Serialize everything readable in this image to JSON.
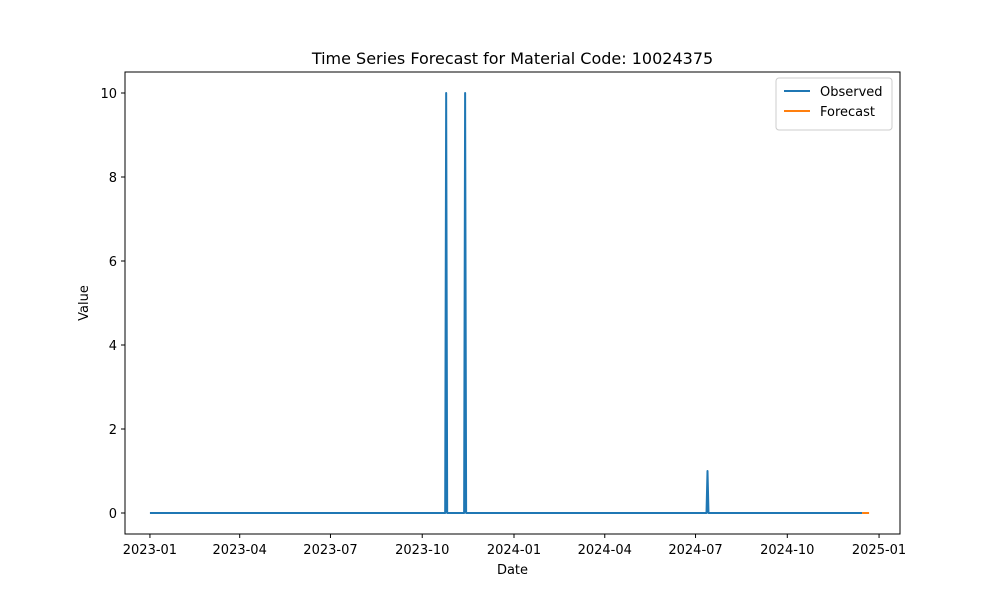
{
  "chart_data": {
    "type": "line",
    "title": "Time Series Forecast for Material Code: 10024375",
    "xlabel": "Date",
    "ylabel": "Value",
    "xlim": [
      "2022-12-07",
      "2025-01-22"
    ],
    "ylim": [
      -0.5,
      10.5
    ],
    "x_ticks": [
      "2023-01",
      "2023-04",
      "2023-07",
      "2023-10",
      "2024-01",
      "2024-04",
      "2024-07",
      "2024-10",
      "2025-01"
    ],
    "y_ticks": [
      0,
      2,
      4,
      6,
      8,
      10
    ],
    "grid": false,
    "legend_position": "top-right",
    "series": [
      {
        "name": "Observed",
        "color": "#1f77b4",
        "points": [
          [
            "2023-01-01",
            0
          ],
          [
            "2023-10-24",
            0
          ],
          [
            "2023-10-25",
            10
          ],
          [
            "2023-10-26",
            0
          ],
          [
            "2023-11-12",
            0
          ],
          [
            "2023-11-13",
            10
          ],
          [
            "2023-11-14",
            0
          ],
          [
            "2024-07-12",
            0
          ],
          [
            "2024-07-13",
            1
          ],
          [
            "2024-07-14",
            0
          ],
          [
            "2024-12-15",
            0
          ]
        ]
      },
      {
        "name": "Forecast",
        "color": "#ff7f0e",
        "points": [
          [
            "2024-12-15",
            0
          ],
          [
            "2024-12-22",
            0
          ]
        ]
      }
    ]
  }
}
